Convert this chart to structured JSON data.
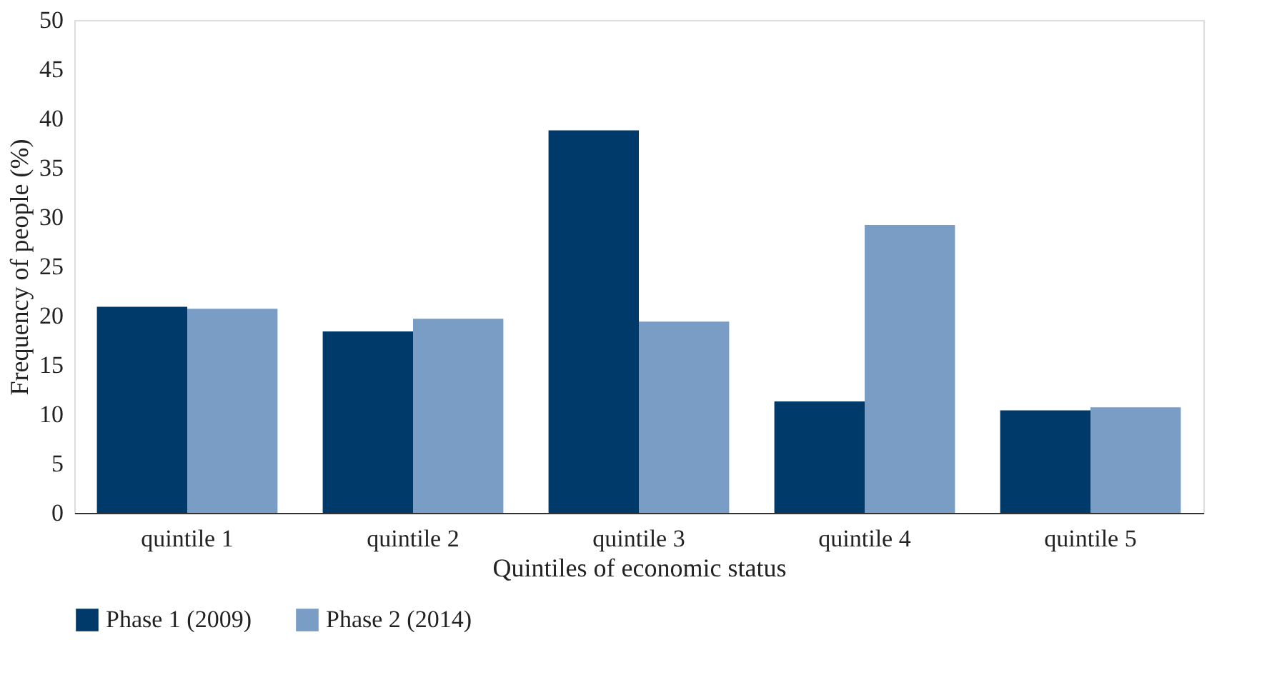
{
  "chart_data": {
    "type": "bar",
    "xlabel": "Quintiles of economic status",
    "ylabel": "Frequency of people (%)",
    "categories": [
      "quintile 1",
      "quintile 2",
      "quintile 3",
      "quintile 4",
      "quintile 5"
    ],
    "series": [
      {
        "name": "Phase 1 (2009)",
        "color": "#003a6b",
        "values": [
          20.9,
          18.4,
          38.8,
          11.3,
          10.4
        ]
      },
      {
        "name": "Phase 2 (2014)",
        "color": "#7a9dc5",
        "values": [
          20.7,
          19.7,
          19.4,
          29.2,
          10.7
        ]
      }
    ],
    "ylim": [
      0,
      50
    ],
    "yticks": [
      0,
      5,
      10,
      15,
      20,
      25,
      30,
      35,
      40,
      45,
      50
    ],
    "grid": false,
    "legend": "bottom"
  }
}
